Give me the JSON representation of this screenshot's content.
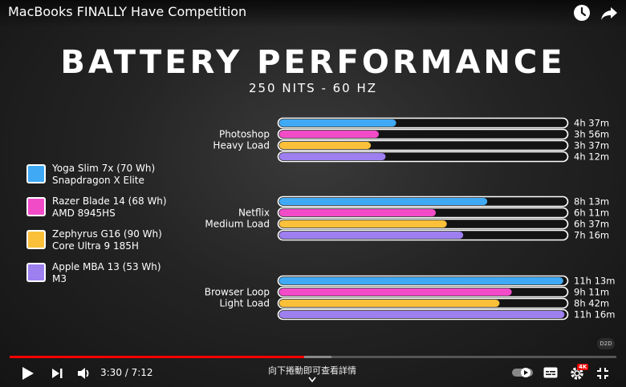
{
  "header": {
    "title": "MacBooks FINALLY Have Competition"
  },
  "icons": {
    "watch_later": "clock-icon",
    "share": "share-icon"
  },
  "chart_data": {
    "type": "bar",
    "title": "BATTERY PERFORMANCE",
    "subtitle": "250 NITS - 60 HZ",
    "unit": "hours",
    "series": [
      {
        "name": "Yoga Slim 7x (70 Wh)",
        "chip": "Snapdragon X Elite",
        "color": "#3fa9f5"
      },
      {
        "name": "Razer Blade 14 (68 Wh)",
        "chip": "AMD 8945HS",
        "color": "#f24bc8"
      },
      {
        "name": "Zephyrus G16 (90 Wh)",
        "chip": "Core Ultra 9 185H",
        "color": "#fbc03a"
      },
      {
        "name": "Apple MBA 13 (53 Wh)",
        "chip": "M3",
        "color": "#9d7ff0"
      }
    ],
    "groups": [
      {
        "label_line1": "Photoshop",
        "label_line2": "Heavy Load",
        "values": [
          4.617,
          3.933,
          3.617,
          4.2
        ],
        "value_labels": [
          "4h 37m",
          "3h 56m",
          "3h 37m",
          "4h 12m"
        ]
      },
      {
        "label_line1": "Netflix",
        "label_line2": "Medium Load",
        "values": [
          8.217,
          6.183,
          6.617,
          7.267
        ],
        "value_labels": [
          "8h 13m",
          "6h 11m",
          "6h 37m",
          "7h 16m"
        ]
      },
      {
        "label_line1": "Browser Loop",
        "label_line2": "Light Load",
        "values": [
          11.217,
          9.183,
          8.7,
          11.267
        ],
        "value_labels": [
          "11h 13m",
          "9h 11m",
          "8h 42m",
          "11h 16m"
        ]
      }
    ],
    "xlim": [
      0,
      11.35
    ]
  },
  "player": {
    "time": "3:30 / 7:12",
    "progress": 0.486,
    "buffered": 0.53,
    "scroll_hint": "向下捲動即可查看詳情",
    "channel_badge": "D2D",
    "quality_badge": "4K"
  }
}
